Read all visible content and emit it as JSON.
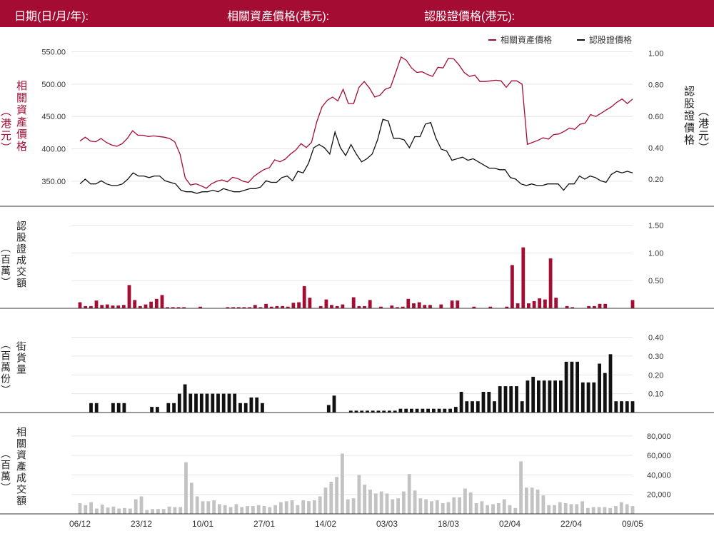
{
  "header": {
    "date_label": "日期(日/月/年):",
    "underlying_price_label": "相關資產價格(港元):",
    "warrant_price_label": "認股證價格(港元):"
  },
  "colors": {
    "brand": "#a50c33",
    "underlying": "#a50c33",
    "warrant": "#111111",
    "outstanding": "#111111",
    "underlying_turnover": "#c3c3c3"
  },
  "labels": {
    "price_left": "相關資產價格",
    "price_left_unit": "（港元）",
    "price_right": "認股證價格",
    "price_right_unit": "（港元）",
    "warrant_turnover": "認股證成交額",
    "warrant_turnover_unit": "（百萬）",
    "outstanding": "街貨量",
    "outstanding_unit": "（百萬份）",
    "underlying_turnover": "相關資產成交額",
    "underlying_turnover_unit": "（百萬）"
  },
  "chart_data": [
    {
      "type": "line",
      "legend": [
        "相關資產價格",
        "認股證價格"
      ],
      "legend_position": "top-right",
      "x_ticks": [
        "06/12",
        "23/12",
        "10/01",
        "27/01",
        "14/02",
        "03/03",
        "18/03",
        "02/04",
        "22/04",
        "09/05"
      ],
      "left_axis": {
        "ticks": [
          "350.00",
          "400.00",
          "450.00",
          "500.00",
          "550.00"
        ],
        "range": [
          330,
          555
        ]
      },
      "right_axis": {
        "ticks": [
          "0.20",
          "0.40",
          "0.60",
          "0.80",
          "1.00"
        ],
        "range": [
          0.105,
          1.03
        ]
      },
      "series": [
        {
          "name": "相關資產價格",
          "axis": "left",
          "values": [
            412,
            418,
            412,
            411,
            416,
            410,
            406,
            404,
            408,
            416,
            428,
            421,
            421,
            419,
            420,
            419,
            418,
            416,
            411,
            392,
            355,
            344,
            346,
            343,
            339,
            346,
            350,
            352,
            349,
            356,
            354,
            350,
            348,
            357,
            363,
            368,
            371,
            383,
            380,
            384,
            392,
            398,
            408,
            402,
            410,
            442,
            465,
            475,
            480,
            474,
            492,
            470,
            470,
            495,
            504,
            494,
            480,
            483,
            492,
            495,
            518,
            542,
            537,
            525,
            518,
            519,
            515,
            512,
            526,
            525,
            540,
            539,
            530,
            518,
            512,
            514,
            504,
            504,
            505,
            506,
            505,
            495,
            505,
            505,
            500,
            407,
            410,
            413,
            417,
            415,
            422,
            423,
            427,
            432,
            430,
            438,
            440,
            453,
            450,
            455,
            460,
            465,
            472,
            477,
            470,
            477
          ],
          "x_range": [
            0,
            105
          ]
        },
        {
          "name": "認股證價格",
          "axis": "right",
          "values": [
            0.17,
            0.2,
            0.17,
            0.17,
            0.19,
            0.17,
            0.16,
            0.16,
            0.17,
            0.2,
            0.24,
            0.22,
            0.22,
            0.21,
            0.22,
            0.22,
            0.19,
            0.18,
            0.17,
            0.13,
            0.12,
            0.12,
            0.11,
            0.12,
            0.12,
            0.13,
            0.12,
            0.14,
            0.13,
            0.12,
            0.12,
            0.13,
            0.14,
            0.14,
            0.15,
            0.19,
            0.18,
            0.18,
            0.21,
            0.22,
            0.19,
            0.25,
            0.24,
            0.3,
            0.4,
            0.42,
            0.4,
            0.36,
            0.5,
            0.4,
            0.35,
            0.42,
            0.36,
            0.31,
            0.33,
            0.36,
            0.45,
            0.58,
            0.57,
            0.46,
            0.46,
            0.45,
            0.4,
            0.47,
            0.47,
            0.55,
            0.56,
            0.46,
            0.39,
            0.38,
            0.32,
            0.33,
            0.34,
            0.32,
            0.33,
            0.31,
            0.29,
            0.27,
            0.27,
            0.26,
            0.26,
            0.21,
            0.2,
            0.17,
            0.16,
            0.17,
            0.16,
            0.16,
            0.17,
            0.17,
            0.17,
            0.13,
            0.17,
            0.17,
            0.22,
            0.2,
            0.22,
            0.21,
            0.19,
            0.18,
            0.23,
            0.25,
            0.24,
            0.25,
            0.24
          ],
          "x_range": [
            0,
            105
          ]
        }
      ]
    },
    {
      "type": "bar",
      "name": "認股證成交額",
      "y_ticks": [
        "0.50",
        "1.00",
        "1.50"
      ],
      "range": [
        0,
        1.7
      ],
      "values": [
        0.11,
        0.04,
        0.04,
        0.14,
        0.06,
        0.07,
        0.05,
        0.05,
        0.06,
        0.42,
        0.15,
        0.04,
        0.07,
        0.12,
        0.17,
        0.24,
        0.02,
        0.02,
        0.02,
        0.02,
        0,
        0,
        0.03,
        0,
        0,
        0,
        0,
        0.02,
        0.02,
        0.02,
        0.02,
        0.02,
        0.06,
        0.02,
        0.08,
        0.03,
        0.04,
        0.04,
        0.03,
        0.1,
        0.11,
        0.4,
        0.19,
        0,
        0.04,
        0.16,
        0.06,
        0.04,
        0.07,
        0,
        0.2,
        0.04,
        0.04,
        0.15,
        0,
        0.03,
        0,
        0.05,
        0.02,
        0.03,
        0.17,
        0.09,
        0.11,
        0.06,
        0.06,
        0,
        0.07,
        0,
        0.14,
        0.14,
        0,
        0,
        0.03,
        0,
        0,
        0.03,
        0,
        0,
        0.03,
        0.78,
        0.09,
        1.1,
        0.09,
        0.13,
        0.18,
        0.16,
        0.9,
        0.19,
        0,
        0.04,
        0.02,
        0,
        0,
        0.04,
        0.04,
        0.08,
        0.08,
        0,
        0,
        0,
        0,
        0.15
      ],
      "range_x": [
        0,
        105
      ]
    },
    {
      "type": "bar",
      "name": "街貨量",
      "y_ticks": [
        "0.10",
        "0.20",
        "0.30",
        "0.40"
      ],
      "range": [
        0,
        0.44
      ],
      "values": [
        0,
        0,
        0.05,
        0.05,
        0,
        0,
        0.05,
        0.05,
        0.05,
        0,
        0,
        0,
        0,
        0.03,
        0.03,
        0,
        0.05,
        0.05,
        0.1,
        0.15,
        0.1,
        0.1,
        0.1,
        0.1,
        0.1,
        0.1,
        0.1,
        0.1,
        0.1,
        0.05,
        0.05,
        0.08,
        0.08,
        0.05,
        0,
        0,
        0,
        0,
        0,
        0,
        0,
        0,
        0,
        0,
        0,
        0.04,
        0.09,
        0,
        0,
        0.01,
        0.01,
        0.01,
        0.01,
        0.01,
        0.01,
        0.01,
        0.01,
        0.01,
        0.02,
        0.02,
        0.02,
        0.02,
        0.02,
        0.02,
        0.02,
        0.02,
        0.02,
        0.02,
        0.03,
        0.11,
        0.06,
        0.06,
        0.06,
        0.11,
        0.11,
        0.06,
        0.14,
        0.14,
        0.14,
        0.14,
        0.06,
        0.17,
        0.19,
        0.17,
        0.17,
        0.17,
        0.17,
        0.17,
        0.27,
        0.27,
        0.27,
        0.16,
        0.16,
        0.16,
        0.26,
        0.21,
        0.31,
        0.06,
        0.06,
        0.06,
        0.06
      ],
      "range_x": [
        0,
        105
      ]
    },
    {
      "type": "bar",
      "name": "相關資產成交額",
      "y_ticks": [
        "20,000",
        "40,000",
        "60,000",
        "80,000"
      ],
      "range": [
        0,
        88000
      ],
      "values": [
        11000,
        9000,
        12000,
        5500,
        9500,
        6500,
        7500,
        5500,
        6000,
        5500,
        15000,
        18000,
        4000,
        5000,
        5000,
        5000,
        7500,
        7000,
        7000,
        53000,
        32000,
        18000,
        13000,
        13000,
        14000,
        10000,
        9000,
        7000,
        10000,
        7000,
        8000,
        8000,
        9000,
        8000,
        7000,
        9000,
        12000,
        13000,
        14000,
        9000,
        14000,
        13000,
        14000,
        18000,
        27000,
        33000,
        38000,
        62000,
        15000,
        16000,
        40000,
        30000,
        25000,
        21000,
        23000,
        21000,
        15000,
        16000,
        23000,
        41000,
        24000,
        16000,
        15000,
        13000,
        14000,
        11000,
        12000,
        17000,
        17000,
        26000,
        22000,
        11000,
        13000,
        9000,
        10000,
        11000,
        15000,
        9000,
        6000,
        54000,
        27000,
        27000,
        25000,
        19000,
        9000,
        9000,
        12000,
        11000,
        10000,
        10000,
        13000,
        6000,
        7000,
        7000,
        7000,
        6000,
        8000,
        12000,
        10000,
        8000
      ],
      "range_x": [
        0,
        105
      ]
    }
  ]
}
